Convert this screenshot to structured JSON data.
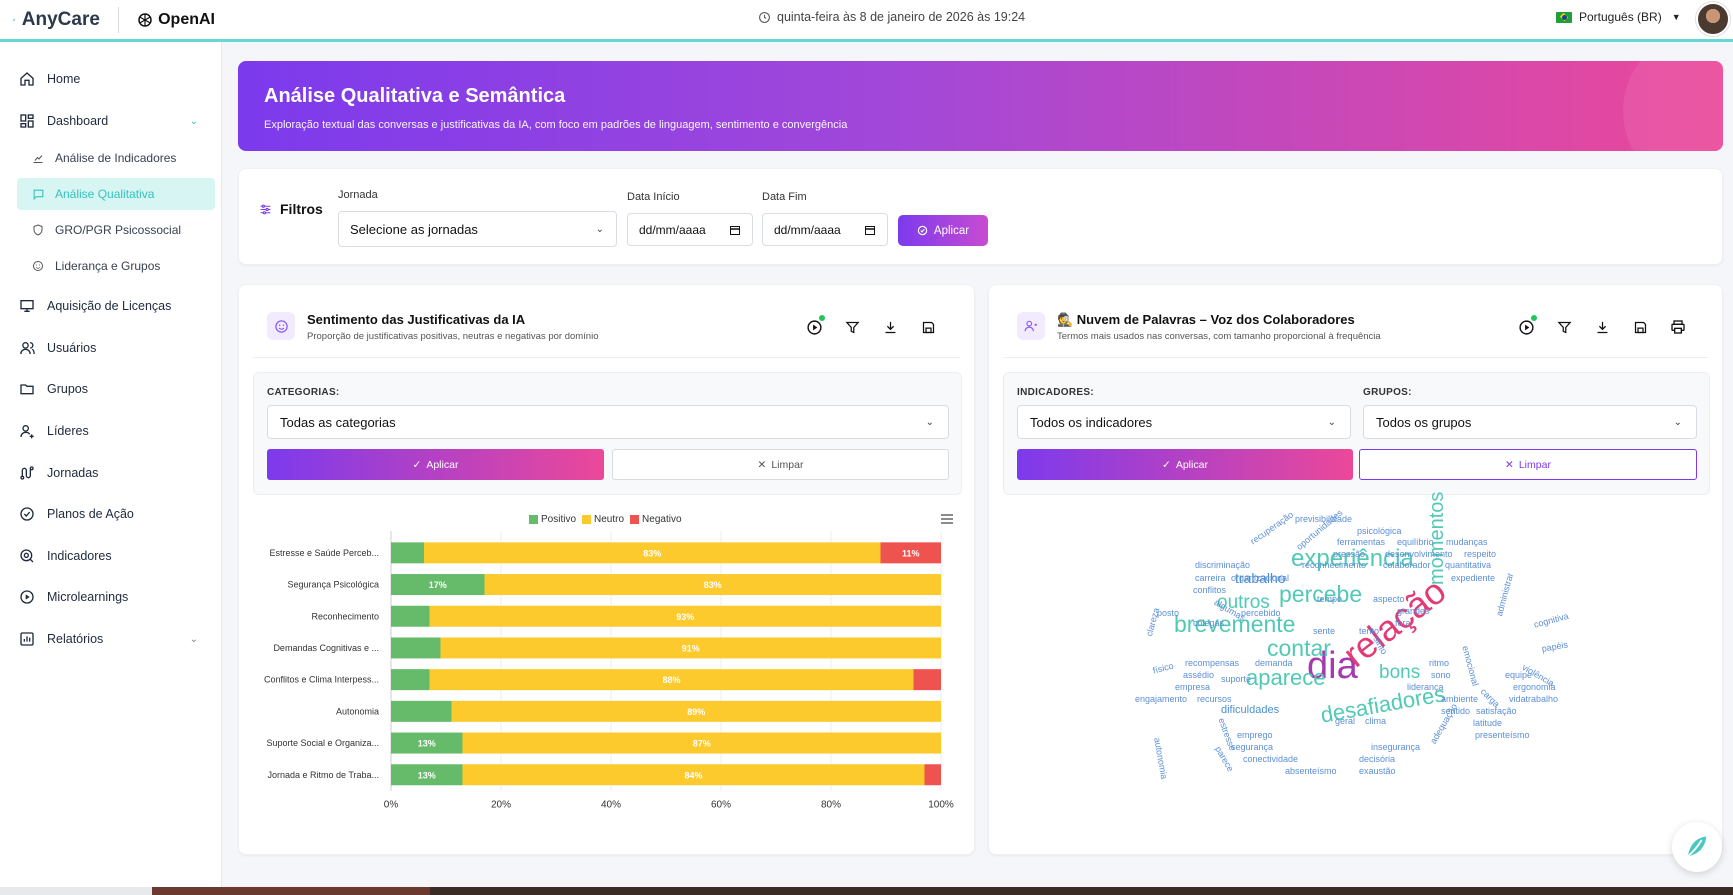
{
  "header": {
    "brand": "AnyCare",
    "partner": "OpenAI",
    "datetime": "quinta-feira às 8 de janeiro de 2026 às 19:24",
    "language": "Português (BR)"
  },
  "sidebar": {
    "items": [
      {
        "label": "Home",
        "icon": "home-icon"
      },
      {
        "label": "Dashboard",
        "icon": "dashboard-icon"
      },
      {
        "label": "Aquisição de Licenças",
        "icon": "monitor-icon"
      },
      {
        "label": "Usuários",
        "icon": "users-icon"
      },
      {
        "label": "Grupos",
        "icon": "folder-icon"
      },
      {
        "label": "Líderes",
        "icon": "leader-icon"
      },
      {
        "label": "Jornadas",
        "icon": "route-icon"
      },
      {
        "label": "Planos de Ação",
        "icon": "check-circle-icon"
      },
      {
        "label": "Indicadores",
        "icon": "target-icon"
      },
      {
        "label": "Microlearnings",
        "icon": "play-circle-icon"
      },
      {
        "label": "Relatórios",
        "icon": "report-icon"
      }
    ],
    "dashboard_sub": [
      {
        "label": "Análise de Indicadores",
        "icon": "chart-icon"
      },
      {
        "label": "Análise Qualitativa",
        "icon": "chat-icon"
      },
      {
        "label": "GRO/PGR Psicossocial",
        "icon": "shield-icon"
      },
      {
        "label": "Liderança e Grupos",
        "icon": "smile-icon"
      }
    ]
  },
  "banner": {
    "title": "Análise Qualitativa e Semântica",
    "subtitle": "Exploração textual das conversas e justificativas da IA, com foco em padrões de linguagem, sentimento e convergência"
  },
  "filters": {
    "title": "Filtros",
    "journey_label": "Jornada",
    "journey_value": "Selecione as jornadas",
    "start_label": "Data Início",
    "start_value": "dd/mm/aaaa",
    "end_label": "Data Fim",
    "end_value": "dd/mm/aaaa",
    "apply": "Aplicar"
  },
  "sentiment_panel": {
    "title": "Sentimento das Justificativas da IA",
    "subtitle": "Proporção de justificativas positivas, neutras e negativas por domínio",
    "categories_label": "CATEGORIAS:",
    "categories_value": "Todas as categorias",
    "apply": "Aplicar",
    "clear": "Limpar"
  },
  "cloud_panel": {
    "title": "🕵️ Nuvem de Palavras – Voz dos Colaboradores",
    "subtitle": "Termos mais usados nas conversas, com tamanho proporcional à frequência",
    "indicators_label": "INDICADORES:",
    "indicators_value": "Todos os indicadores",
    "groups_label": "GRUPOS:",
    "groups_value": "Todos os grupos",
    "apply": "Aplicar",
    "clear": "Limpar"
  },
  "chart_data": {
    "type": "bar",
    "orientation": "horizontal-stacked-percent",
    "categories": [
      "Estresse e Saúde Perceb...",
      "Segurança Psicológica",
      "Reconhecimento",
      "Demandas Cognitivas e ...",
      "Conflitos e Clima Interpess...",
      "Autonomia",
      "Suporte Social e Organiza...",
      "Jornada e Ritmo de Traba..."
    ],
    "series": [
      {
        "name": "Positivo",
        "color": "#66bb6a",
        "values": [
          6,
          17,
          7,
          9,
          7,
          11,
          13,
          13
        ]
      },
      {
        "name": "Neutro",
        "color": "#fdca2e",
        "values": [
          83,
          83,
          93,
          91,
          88,
          89,
          87,
          84
        ]
      },
      {
        "name": "Negativo",
        "color": "#ef5350",
        "values": [
          11,
          0,
          0,
          0,
          5,
          0,
          0,
          3
        ]
      }
    ],
    "data_labels": [
      [
        "",
        "83%",
        "11%"
      ],
      [
        "17%",
        "83%",
        ""
      ],
      [
        "",
        "93%",
        ""
      ],
      [
        "",
        "91%",
        ""
      ],
      [
        "",
        "88%",
        ""
      ],
      [
        "",
        "89%",
        ""
      ],
      [
        "13%",
        "87%",
        ""
      ],
      [
        "13%",
        "84%",
        ""
      ]
    ],
    "xticks": [
      "0%",
      "20%",
      "40%",
      "60%",
      "80%",
      "100%"
    ],
    "xlim": [
      0,
      100
    ],
    "legend_position": "top-center"
  },
  "word_cloud": [
    {
      "t": "dia",
      "c": "#a53ab0"
    },
    {
      "t": "relação",
      "c": "#e33a76"
    },
    {
      "t": "experiência",
      "c": "#52c9b5"
    },
    {
      "t": "percebe",
      "c": "#52c9b5"
    },
    {
      "t": "brevemente",
      "c": "#52c9b5"
    },
    {
      "t": "contar",
      "c": "#52c9b5"
    },
    {
      "t": "aparece",
      "c": "#52c9b5"
    },
    {
      "t": "desafiadores",
      "c": "#52c9b5"
    },
    {
      "t": "momentos",
      "c": "#52c9b5"
    },
    {
      "t": "outros",
      "c": "#52c9b5"
    },
    {
      "t": "bons",
      "c": "#52c9b5"
    },
    {
      "t": "trabalho",
      "c": "#4a8fd1"
    },
    {
      "t": "dificuldades",
      "c": "#4a8fd1"
    },
    {
      "t": "previsibilidade",
      "c": "#5c8fd6"
    },
    {
      "t": "psicológica",
      "c": "#5c8fd6"
    },
    {
      "t": "recuperação",
      "c": "#5c8fd6"
    },
    {
      "t": "oportunidades",
      "c": "#5c8fd6"
    },
    {
      "t": "ferramentas",
      "c": "#5c8fd6"
    },
    {
      "t": "equilíbrio",
      "c": "#5c8fd6"
    },
    {
      "t": "mudanças",
      "c": "#5c8fd6"
    },
    {
      "t": "pressão",
      "c": "#5c8fd6"
    },
    {
      "t": "desenvolvimento",
      "c": "#5c8fd6"
    },
    {
      "t": "respeito",
      "c": "#5c8fd6"
    },
    {
      "t": "discriminação",
      "c": "#5c8fd6"
    },
    {
      "t": "reconhecimento",
      "c": "#5c8fd6"
    },
    {
      "t": "colaborador",
      "c": "#5c8fd6"
    },
    {
      "t": "quantitativa",
      "c": "#5c8fd6"
    },
    {
      "t": "carreira",
      "c": "#5c8fd6"
    },
    {
      "t": "organizacional",
      "c": "#5c8fd6"
    },
    {
      "t": "expediente",
      "c": "#5c8fd6"
    },
    {
      "t": "conflitos",
      "c": "#5c8fd6"
    },
    {
      "t": "tempo",
      "c": "#5c8fd6"
    },
    {
      "t": "aspecto",
      "c": "#5c8fd6"
    },
    {
      "t": "algumas",
      "c": "#5c8fd6"
    },
    {
      "t": "percebido",
      "c": "#5c8fd6"
    },
    {
      "t": "grandes",
      "c": "#5c8fd6"
    },
    {
      "t": "posto",
      "c": "#5c8fd6"
    },
    {
      "t": "colegas",
      "c": "#5c8fd6"
    },
    {
      "t": "fora",
      "c": "#5c8fd6"
    },
    {
      "t": "sente",
      "c": "#5c8fd6"
    },
    {
      "t": "tento",
      "c": "#5c8fd6"
    },
    {
      "t": "sinto",
      "c": "#5c8fd6"
    },
    {
      "t": "administrar",
      "c": "#5c8fd6"
    },
    {
      "t": "emocional",
      "c": "#5c8fd6"
    },
    {
      "t": "cognitiva",
      "c": "#5c8fd6"
    },
    {
      "t": "papéis",
      "c": "#5c8fd6"
    },
    {
      "t": "clareza",
      "c": "#5c8fd6"
    },
    {
      "t": "violência",
      "c": "#5c8fd6"
    },
    {
      "t": "recompensas",
      "c": "#5c8fd6"
    },
    {
      "t": "demanda",
      "c": "#5c8fd6"
    },
    {
      "t": "ritmo",
      "c": "#5c8fd6"
    },
    {
      "t": "físico",
      "c": "#5c8fd6"
    },
    {
      "t": "assédio",
      "c": "#5c8fd6"
    },
    {
      "t": "suporte",
      "c": "#5c8fd6"
    },
    {
      "t": "sono",
      "c": "#5c8fd6"
    },
    {
      "t": "equipe",
      "c": "#5c8fd6"
    },
    {
      "t": "empresa",
      "c": "#5c8fd6"
    },
    {
      "t": "liderança",
      "c": "#5c8fd6"
    },
    {
      "t": "carga",
      "c": "#5c8fd6"
    },
    {
      "t": "ergonomia",
      "c": "#5c8fd6"
    },
    {
      "t": "engajamento",
      "c": "#5c8fd6"
    },
    {
      "t": "recursos",
      "c": "#5c8fd6"
    },
    {
      "t": "ambiente",
      "c": "#5c8fd6"
    },
    {
      "t": "vidatrabalho",
      "c": "#5c8fd6"
    },
    {
      "t": "sentido",
      "c": "#5c8fd6"
    },
    {
      "t": "satisfação",
      "c": "#5c8fd6"
    },
    {
      "t": "autonomia",
      "c": "#5c8fd6"
    },
    {
      "t": "estresse",
      "c": "#5c8fd6"
    },
    {
      "t": "geral",
      "c": "#5c8fd6"
    },
    {
      "t": "clima",
      "c": "#5c8fd6"
    },
    {
      "t": "latitude",
      "c": "#5c8fd6"
    },
    {
      "t": "presenteísmo",
      "c": "#5c8fd6"
    },
    {
      "t": "emprego",
      "c": "#5c8fd6"
    },
    {
      "t": "adequação",
      "c": "#5c8fd6"
    },
    {
      "t": "parece",
      "c": "#5c8fd6"
    },
    {
      "t": "segurança",
      "c": "#5c8fd6"
    },
    {
      "t": "insegurança",
      "c": "#5c8fd6"
    },
    {
      "t": "conectividade",
      "c": "#5c8fd6"
    },
    {
      "t": "decisória",
      "c": "#5c8fd6"
    },
    {
      "t": "absenteísmo",
      "c": "#5c8fd6"
    },
    {
      "t": "exaustão",
      "c": "#5c8fd6"
    }
  ]
}
